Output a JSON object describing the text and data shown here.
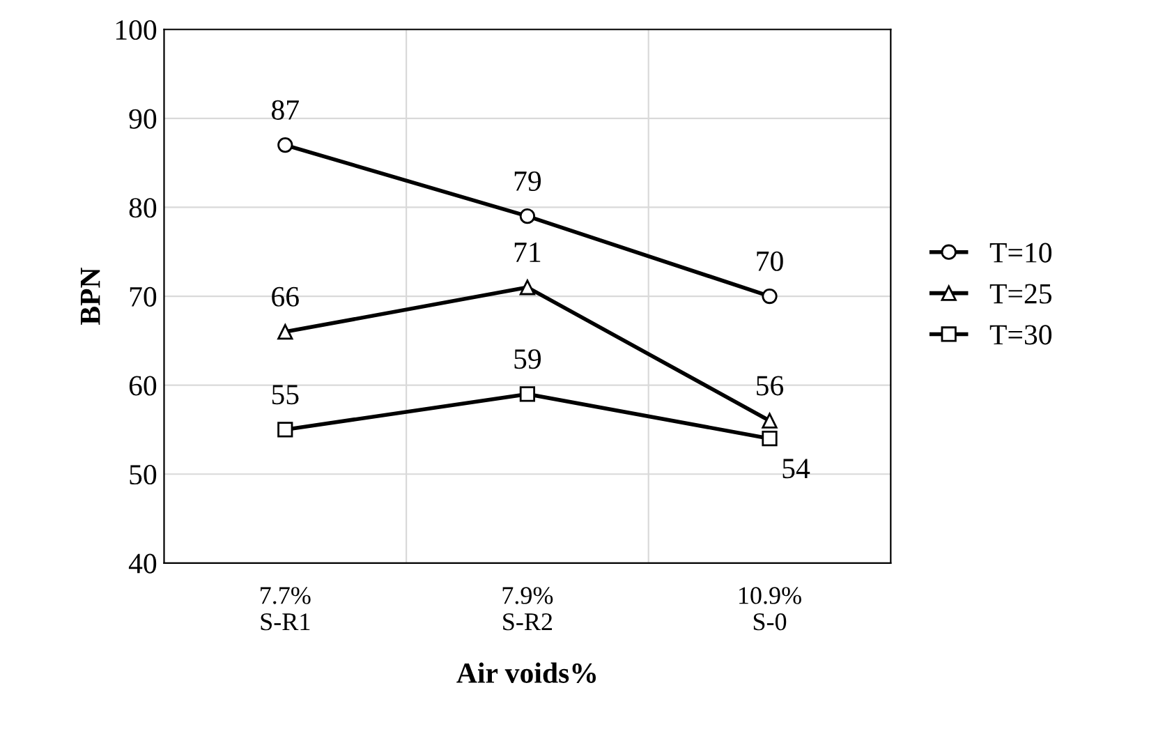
{
  "chart_data": {
    "type": "line",
    "xlabel": "Air voids%",
    "ylabel": "BPN",
    "categories": [
      "7.7%\nS-R1",
      "7.9%\nS-R2",
      "10.9%\nS-0"
    ],
    "series": [
      {
        "name": "T=10",
        "color": "#000000",
        "marker": "circle",
        "values": [
          87,
          79,
          70
        ]
      },
      {
        "name": "T=25",
        "color": "#000000",
        "marker": "triangle",
        "values": [
          66,
          71,
          56
        ]
      },
      {
        "name": "T=30",
        "color": "#000000",
        "marker": "square",
        "values": [
          55,
          59,
          54
        ]
      }
    ],
    "ylim": [
      40,
      100
    ],
    "yticks": [
      40,
      50,
      60,
      70,
      80,
      90,
      100
    ],
    "grid": true,
    "legend": "right",
    "data_labels": true,
    "line_style": "solid"
  }
}
